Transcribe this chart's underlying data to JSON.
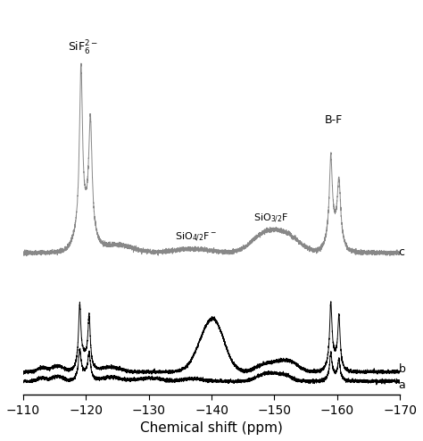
{
  "xlim": [
    -110,
    -170
  ],
  "xlabel": "Chemical shift (ppm)",
  "xticks": [
    -110,
    -120,
    -130,
    -140,
    -150,
    -160,
    -170
  ],
  "background_color": "#ffffff",
  "label_sif6": "SiF$_6^{2-}$",
  "label_sio42f": "SiO$_{4/2}$F$^-$",
  "label_sio32f": "SiO$_{3/2}$F",
  "label_bf": "B-F",
  "gray_color": "#888888",
  "black_color": "#000000"
}
